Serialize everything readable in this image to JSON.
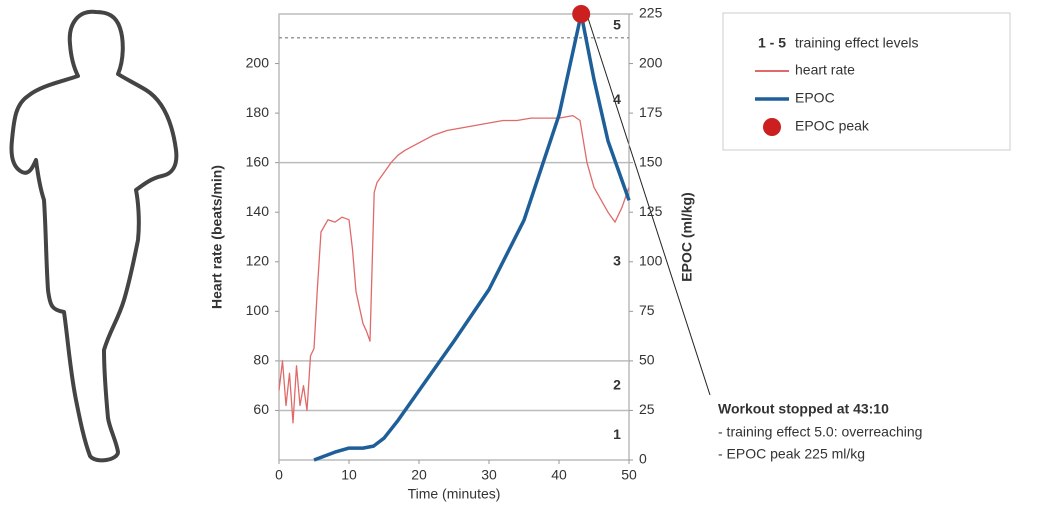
{
  "chart_data": {
    "type": "line",
    "x_label": "Time (minutes)",
    "y_label": "Heart rate (beats/min)",
    "y2_label": "EPOC (ml/kg)",
    "xlim": [
      0,
      50
    ],
    "xticks": [
      0,
      10,
      20,
      30,
      40,
      50
    ],
    "ylim": [
      40,
      220
    ],
    "yticks": [
      60,
      80,
      100,
      120,
      140,
      160,
      180,
      200
    ],
    "y2lim": [
      0,
      225
    ],
    "y2ticks": [
      0,
      25,
      50,
      75,
      100,
      125,
      150,
      175,
      200,
      225
    ],
    "y_label_color": "#c8343c",
    "y2_label_color": "#1f5f99",
    "zones": {
      "key": "1 - 5",
      "name": "training effect levels",
      "labels": [
        "1",
        "2",
        "3",
        "4",
        "5"
      ],
      "bounds": [
        0,
        25,
        50,
        150,
        213,
        225
      ]
    },
    "series": [
      {
        "name": "heart rate",
        "color": "#e06a6a",
        "axis": "y",
        "style": "line",
        "x": [
          0,
          0.5,
          1,
          1.5,
          2,
          2.5,
          3,
          3.5,
          4,
          4.5,
          5,
          5.5,
          6,
          7,
          8,
          9,
          10,
          10.5,
          11,
          12,
          12.5,
          13,
          13.3,
          13.6,
          14,
          15,
          16,
          17,
          18,
          20,
          22,
          24,
          26,
          28,
          30,
          32,
          34,
          36,
          38,
          40,
          42,
          43,
          44,
          45,
          46,
          47,
          48,
          49,
          50
        ],
        "values": [
          68,
          80,
          62,
          75,
          55,
          78,
          62,
          70,
          60,
          82,
          85,
          110,
          132,
          137,
          136,
          138,
          137,
          125,
          108,
          95,
          92,
          88,
          118,
          148,
          152,
          156,
          160,
          163,
          165,
          168,
          171,
          173,
          174,
          175,
          176,
          177,
          177,
          178,
          178,
          178,
          179,
          177,
          160,
          150,
          145,
          140,
          136,
          142,
          150
        ]
      },
      {
        "name": "EPOC",
        "color": "#1f5f99",
        "axis": "y2",
        "style": "line",
        "x": [
          5,
          8,
          10,
          12,
          13.5,
          15,
          17,
          20,
          25,
          30,
          35,
          40,
          43.17,
          45,
          47,
          49,
          50
        ],
        "values": [
          0,
          4,
          6,
          6,
          7,
          11,
          20,
          35,
          60,
          86,
          121,
          174,
          225,
          192,
          161,
          141,
          131
        ]
      },
      {
        "name": "EPOC peak",
        "color": "#cc1f1f",
        "axis": "y2",
        "style": "marker",
        "x": [
          43.17
        ],
        "values": [
          225
        ]
      }
    ],
    "annotation": {
      "title": "Workout stopped at 43:10",
      "lines": [
        "- training effect 5.0: overreaching",
        "- EPOC peak 225 ml/kg"
      ]
    }
  }
}
